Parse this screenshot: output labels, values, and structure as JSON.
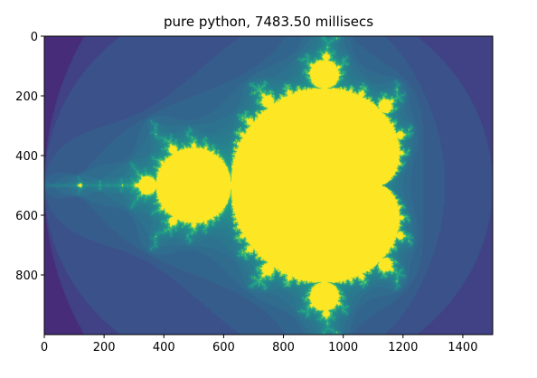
{
  "chart_data": {
    "type": "heatmap",
    "title": "pure python, 7483.50 millisecs",
    "xlabel": "",
    "ylabel": "",
    "xlim": [
      0,
      1500
    ],
    "ylim": [
      0,
      1000
    ],
    "y_axis_inverted": true,
    "x_ticks": [
      0,
      200,
      400,
      600,
      800,
      1000,
      1200,
      1400
    ],
    "x_tick_labels": [
      "0",
      "200",
      "400",
      "600",
      "800",
      "1000",
      "1200",
      "1400"
    ],
    "y_ticks": [
      0,
      200,
      400,
      600,
      800
    ],
    "y_tick_labels": [
      "0",
      "200",
      "400",
      "600",
      "800"
    ],
    "grid": false,
    "colormap": "viridis",
    "colormap_stops": [
      "#440154",
      "#482878",
      "#3e4989",
      "#31688e",
      "#26828e",
      "#1f9e89",
      "#35b779",
      "#6ece58",
      "#b5de2b",
      "#fde725"
    ],
    "content": "Mandelbrot set escape-time image",
    "complex_range": {
      "re": [
        -2.0,
        1.0
      ],
      "im": [
        -1.0,
        1.0
      ]
    },
    "max_iterations": 255
  }
}
